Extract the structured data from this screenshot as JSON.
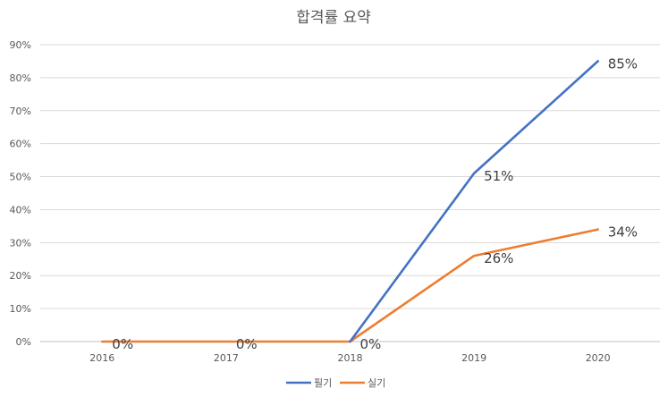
{
  "chart_data": {
    "type": "line",
    "title": "합격률 요약",
    "categories": [
      "2016",
      "2017",
      "2018",
      "2019",
      "2020"
    ],
    "ylim": [
      0,
      90
    ],
    "y_ticks": [
      0,
      10,
      20,
      30,
      40,
      50,
      60,
      70,
      80,
      90
    ],
    "y_tick_format": "%",
    "grid": true,
    "legend_position": "bottom",
    "series": [
      {
        "name": "필기",
        "color": "#4472c4",
        "values": [
          null,
          null,
          0,
          51,
          85
        ],
        "labels": [
          "",
          "",
          "",
          "51%",
          "85%"
        ]
      },
      {
        "name": "실기",
        "color": "#ed7d31",
        "values": [
          0,
          0,
          0,
          26,
          34
        ],
        "labels": [
          "0%",
          "0%",
          "0%",
          "26%",
          "34%"
        ]
      }
    ]
  }
}
